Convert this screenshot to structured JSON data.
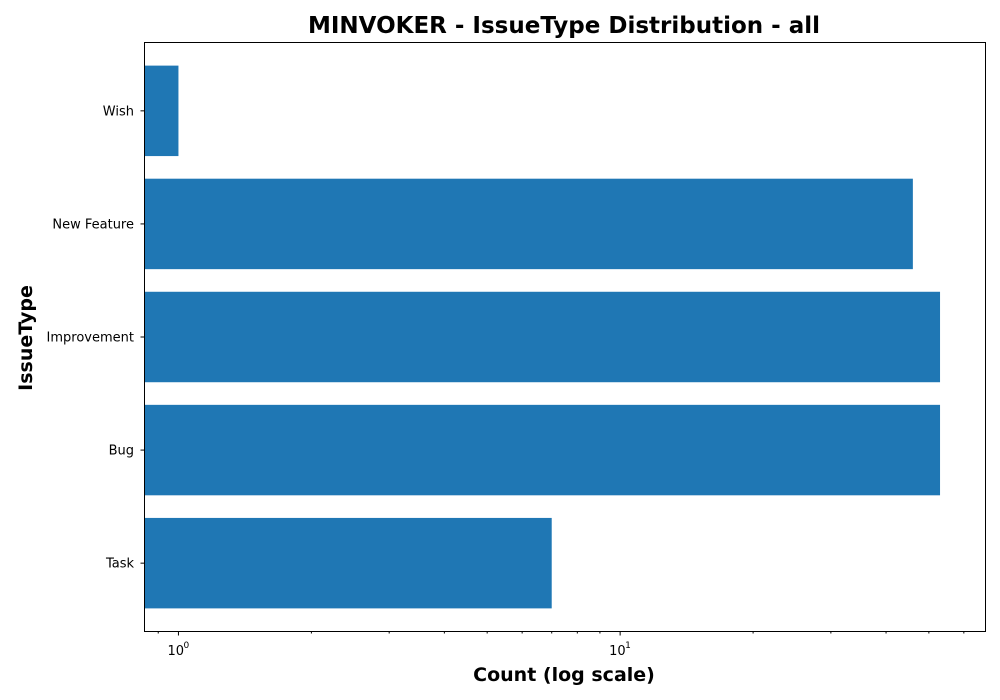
{
  "chart_data": {
    "type": "bar",
    "orientation": "horizontal",
    "title": "MINVOKER - IssueType Distribution - all",
    "xlabel": "Count (log scale)",
    "ylabel": "IssueType",
    "xscale": "log",
    "xlim": [
      0.84,
      67
    ],
    "x_ticks": [
      {
        "value": 1,
        "base": "10",
        "exp": "0"
      },
      {
        "value": 10,
        "base": "10",
        "exp": "1"
      }
    ],
    "categories": [
      "Task",
      "Bug",
      "Improvement",
      "New Feature",
      "Wish"
    ],
    "values": [
      7,
      53,
      53,
      46,
      1
    ],
    "bar_color": "#1f77b4",
    "grid": false,
    "legend": "none"
  }
}
